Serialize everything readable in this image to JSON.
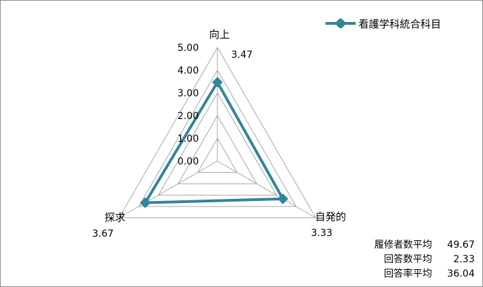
{
  "chart_data": {
    "type": "radar",
    "categories": [
      "向上",
      "自発的",
      "探求"
    ],
    "series": [
      {
        "name": "看護学科統合科目",
        "values": [
          3.47,
          3.33,
          3.67
        ]
      }
    ],
    "data_labels": [
      "3.47",
      "3.33",
      "3.67"
    ],
    "axis": {
      "min": 0,
      "max": 5,
      "step": 1,
      "tick_labels": [
        "0.00",
        "1.00",
        "2.00",
        "3.00",
        "4.00",
        "5.00"
      ]
    },
    "legend_position": "top-right",
    "colors": {
      "series": "#31859c",
      "grid": "#a6a6a6"
    }
  },
  "stats": [
    {
      "label": "履修者数平均",
      "value": "49.67"
    },
    {
      "label": "回答数平均",
      "value": "2.33"
    },
    {
      "label": "回答率平均",
      "value": "36.04"
    }
  ]
}
